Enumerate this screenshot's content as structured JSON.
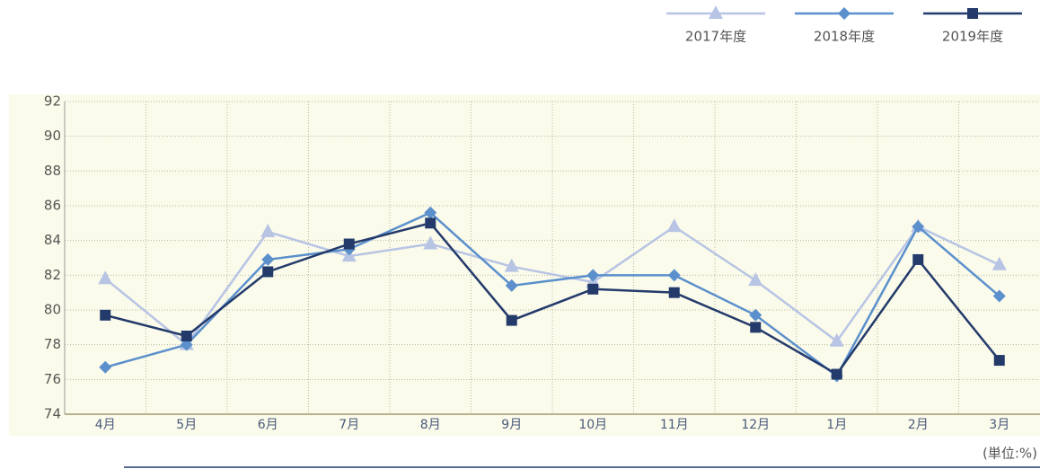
{
  "chart_data": {
    "type": "line",
    "categories": [
      "4月",
      "5月",
      "6月",
      "7月",
      "8月",
      "9月",
      "10月",
      "11月",
      "12月",
      "1月",
      "2月",
      "3月"
    ],
    "series": [
      {
        "name": "2017年度",
        "color": "#b7c4e4",
        "marker": "triangle",
        "values": [
          81.8,
          78.0,
          84.5,
          83.1,
          83.8,
          82.5,
          81.6,
          84.8,
          81.7,
          78.2,
          84.8,
          82.6
        ]
      },
      {
        "name": "2018年度",
        "color": "#5b90cc",
        "marker": "diamond",
        "values": [
          76.7,
          78.0,
          82.9,
          83.5,
          85.6,
          81.4,
          82.0,
          82.0,
          79.7,
          76.2,
          84.8,
          80.8
        ]
      },
      {
        "name": "2019年度",
        "color": "#233a6b",
        "marker": "square",
        "values": [
          79.7,
          78.5,
          82.2,
          83.8,
          85.0,
          79.4,
          81.2,
          81.0,
          79.0,
          76.3,
          82.9,
          77.1
        ]
      }
    ],
    "ylim": [
      74,
      92
    ],
    "yticks": [
      74,
      76,
      78,
      80,
      82,
      84,
      86,
      88,
      90,
      92
    ],
    "grid": true,
    "legend": "top-right",
    "unit_note": "(単位:%)"
  }
}
